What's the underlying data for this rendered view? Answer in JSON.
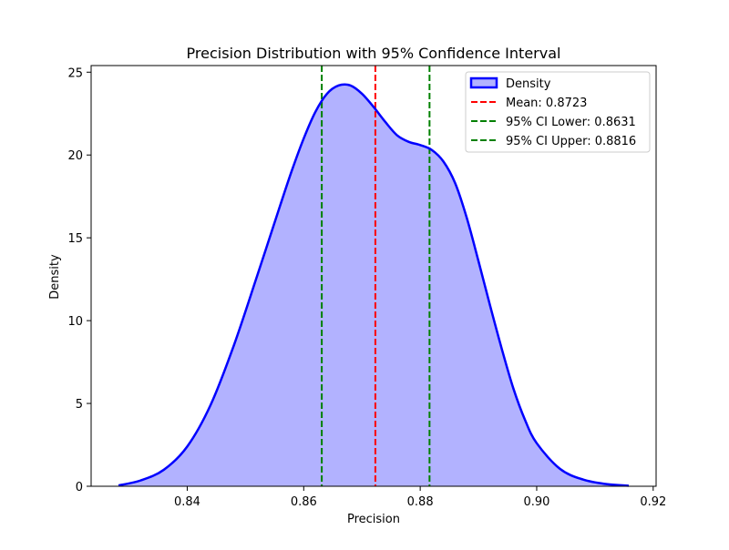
{
  "chart_data": {
    "type": "area",
    "title": "Precision Distribution with 95% Confidence Interval",
    "xlabel": "Precision",
    "ylabel": "Density",
    "xlim": [
      0.8235,
      0.9205
    ],
    "ylim": [
      0,
      25.4
    ],
    "xticks": [
      0.84,
      0.86,
      0.88,
      0.9,
      0.92
    ],
    "xtick_labels": [
      "0.84",
      "0.86",
      "0.88",
      "0.90",
      "0.92"
    ],
    "yticks": [
      0,
      5,
      10,
      15,
      20,
      25
    ],
    "ytick_labels": [
      "0",
      "5",
      "10",
      "15",
      "20",
      "25"
    ],
    "grid": false,
    "legend_position": "top-right",
    "series": [
      {
        "name": "Density",
        "color": "#0000ff",
        "fill_color": "#b2b2ff",
        "x": [
          0.8282,
          0.832,
          0.836,
          0.84,
          0.844,
          0.848,
          0.852,
          0.856,
          0.858,
          0.86,
          0.862,
          0.864,
          0.866,
          0.868,
          0.87,
          0.872,
          0.874,
          0.876,
          0.878,
          0.88,
          0.882,
          0.884,
          0.886,
          0.888,
          0.89,
          0.892,
          0.894,
          0.896,
          0.898,
          0.9,
          0.904,
          0.908,
          0.912,
          0.9158
        ],
        "y": [
          0.05,
          0.35,
          1.0,
          2.4,
          4.9,
          8.5,
          12.7,
          17.0,
          19.1,
          21.0,
          22.6,
          23.7,
          24.2,
          24.2,
          23.7,
          22.9,
          22.0,
          21.2,
          20.8,
          20.6,
          20.3,
          19.6,
          18.3,
          16.2,
          13.6,
          10.9,
          8.3,
          5.9,
          4.0,
          2.6,
          1.05,
          0.4,
          0.13,
          0.03
        ]
      }
    ],
    "reference_lines": [
      {
        "name": "Mean: 0.8723",
        "x": 0.8723,
        "color": "#ff0000",
        "style": "dashed"
      },
      {
        "name": "95% CI Lower: 0.8631",
        "x": 0.8631,
        "color": "#008000",
        "style": "dashed"
      },
      {
        "name": "95% CI Upper: 0.8816",
        "x": 0.8816,
        "color": "#008000",
        "style": "dashed"
      }
    ]
  }
}
